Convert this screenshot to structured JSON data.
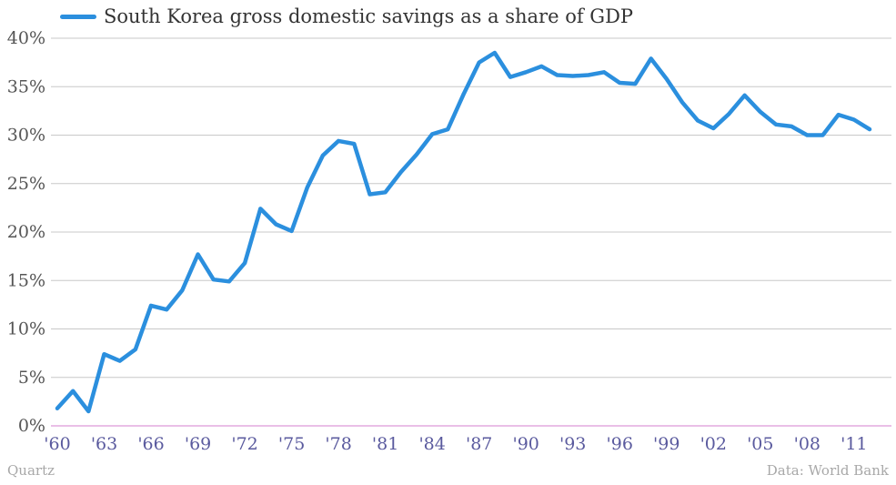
{
  "chart_data": {
    "type": "line",
    "title": "",
    "xlabel": "",
    "ylabel": "",
    "legend_position": "top-left",
    "grid": true,
    "series": [
      {
        "name": "South Korea gross domestic savings as a share of GDP",
        "color": "#2b8fde",
        "x": [
          1960,
          1961,
          1962,
          1963,
          1964,
          1965,
          1966,
          1967,
          1968,
          1969,
          1970,
          1971,
          1972,
          1973,
          1974,
          1975,
          1976,
          1977,
          1978,
          1979,
          1980,
          1981,
          1982,
          1983,
          1984,
          1985,
          1986,
          1987,
          1988,
          1989,
          1990,
          1991,
          1992,
          1993,
          1994,
          1995,
          1996,
          1997,
          1998,
          1999,
          2000,
          2001,
          2002,
          2003,
          2004,
          2005,
          2006,
          2007,
          2008,
          2009,
          2010,
          2011,
          2012
        ],
        "values": [
          1.8,
          3.6,
          1.5,
          7.4,
          6.7,
          7.9,
          12.4,
          12.0,
          14.0,
          17.7,
          15.1,
          14.9,
          16.8,
          22.4,
          20.8,
          20.1,
          24.6,
          27.9,
          29.4,
          29.1,
          23.9,
          24.1,
          26.2,
          28.0,
          30.1,
          30.6,
          34.2,
          37.5,
          38.5,
          36.0,
          36.5,
          37.1,
          36.2,
          36.1,
          36.2,
          36.5,
          35.4,
          35.3,
          37.9,
          35.8,
          33.4,
          31.5,
          30.7,
          32.2,
          34.1,
          32.4,
          31.1,
          30.9,
          30.0,
          30.0,
          32.1,
          31.6,
          30.6
        ]
      }
    ],
    "x_tick_labels": [
      "'60",
      "'63",
      "'66",
      "'69",
      "'72",
      "'75",
      "'78",
      "'81",
      "'84",
      "'87",
      "'90",
      "'93",
      "'96",
      "'99",
      "'02",
      "'05",
      "'08",
      "'11"
    ],
    "x_tick_years": [
      1960,
      1963,
      1966,
      1969,
      1972,
      1975,
      1978,
      1981,
      1984,
      1987,
      1990,
      1993,
      1996,
      1999,
      2002,
      2005,
      2008,
      2011
    ],
    "y_ticks": [
      0,
      5,
      10,
      15,
      20,
      25,
      30,
      35,
      40
    ],
    "y_tick_labels": [
      "0%",
      "5%",
      "10%",
      "15%",
      "20%",
      "25%",
      "30%",
      "35%",
      "40%"
    ],
    "xlim": [
      1960,
      2012
    ],
    "ylim": [
      0,
      40
    ]
  },
  "footer": {
    "source_left": "Quartz",
    "source_right": "Data: World Bank"
  },
  "colors": {
    "grid": "#c8c8c8",
    "baseline": "#d47fcf",
    "line": "#2b8fde"
  }
}
